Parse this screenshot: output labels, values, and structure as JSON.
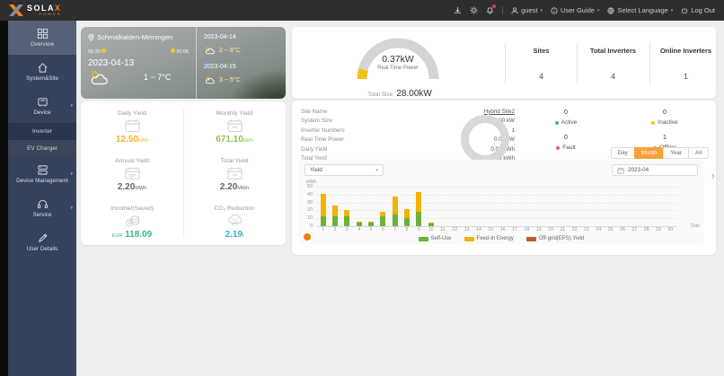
{
  "header": {
    "brand": {
      "name": "SOLA",
      "name_x": "X",
      "sub": "POWER"
    },
    "user": "guest",
    "user_guide": "User Guide",
    "select_language": "Select Language",
    "logout": "Log Out"
  },
  "sidebar": {
    "items": [
      {
        "label": "Overview"
      },
      {
        "label": "System&Site"
      },
      {
        "label": "Device"
      },
      {
        "label": "Device Management"
      },
      {
        "label": "Service"
      },
      {
        "label": "User Details"
      }
    ],
    "device_submenu": [
      {
        "label": "Inverter"
      },
      {
        "label": "EV Charger"
      }
    ]
  },
  "weather": {
    "location": "Schmalkalden-Meiningen",
    "sunrise": "06:30",
    "sunset": "20:06",
    "date": "2023-04-13",
    "temp": "1 ~ 7°C",
    "forecast": [
      {
        "date": "2023-04-14",
        "temp": "2 ~ 8°C"
      },
      {
        "date": "2023-04-15",
        "temp": "3 ~ 5°C"
      }
    ]
  },
  "yield_cards": [
    {
      "label": "Daily Yield",
      "value": "12.50",
      "unit": "kWh",
      "color": "#f0b429"
    },
    {
      "label": "Monthly Yield",
      "value": "671.10",
      "unit": "kWh",
      "color": "#8bc34a"
    },
    {
      "label": "Annual Yield",
      "value": "2.20",
      "unit": "MWh",
      "color": "#666666"
    },
    {
      "label": "Total Yield",
      "value": "2.20",
      "unit": "MWh",
      "color": "#666666"
    },
    {
      "label": "Income/(Saved)",
      "prefix": "EUR",
      "value": "118.09",
      "unit": "",
      "color": "#3cb689"
    },
    {
      "label": "CO₂ Reduction",
      "value": "2.19",
      "unit": "t",
      "color": "#3fa9c9"
    }
  ],
  "summary": {
    "gauge_value": "0.37kW",
    "gauge_label": "Real Time Power",
    "total_size_label": "Total Size",
    "total_size_value": "28.00kW",
    "stats": [
      {
        "label": "Sites",
        "value": "4"
      },
      {
        "label": "Total Inverters",
        "value": "4"
      },
      {
        "label": "Online Inverters",
        "value": "1"
      }
    ],
    "accent_color": "#f5c01e",
    "gauge_track_color": "#d4d4d4"
  },
  "site": {
    "rows": [
      {
        "label": "Site Name",
        "value": "Hybrid Site2"
      },
      {
        "label": "System Size",
        "value": "10.00 kW"
      },
      {
        "label": "Inverter Numbers",
        "value": "1"
      },
      {
        "label": "Real Time Power",
        "value": "0.00 kW"
      },
      {
        "label": "Daily Yield",
        "value": "0.00 kWh"
      },
      {
        "label": "Total Yield",
        "value": "694.20 kWh"
      }
    ],
    "statuses": [
      {
        "count": "0",
        "label": "Active",
        "color": "#3cb878"
      },
      {
        "count": "0",
        "label": "Inactive",
        "color": "#f5c518"
      },
      {
        "count": "0",
        "label": "Fault",
        "color": "#f05a7e"
      },
      {
        "count": "1",
        "label": "Offline",
        "color": "#9e9e9e"
      }
    ]
  },
  "chart_controls": {
    "ranges": [
      {
        "label": "Day"
      },
      {
        "label": "Month"
      },
      {
        "label": "Year"
      },
      {
        "label": "All"
      }
    ],
    "active_range": "Month",
    "metric": "Yield",
    "date": "2023-04"
  },
  "chart_data": {
    "type": "bar",
    "stacked": true,
    "x": [
      1,
      2,
      3,
      4,
      5,
      6,
      7,
      8,
      9,
      10,
      11,
      12,
      13,
      14,
      15,
      16,
      17,
      18,
      19,
      20,
      21,
      22,
      23,
      24,
      25,
      26,
      27,
      28,
      29,
      30
    ],
    "series": [
      {
        "name": "Self-Use",
        "color": "#6db236",
        "values": [
          13,
          12,
          12,
          5,
          5,
          13,
          15,
          10,
          18,
          4,
          0,
          0,
          0,
          0,
          0,
          0,
          0,
          0,
          0,
          0,
          0,
          0,
          0,
          0,
          0,
          0,
          0,
          0,
          0,
          0
        ]
      },
      {
        "name": "Feed-In Energy",
        "color": "#f2b200",
        "values": [
          28,
          14,
          8,
          1,
          1,
          5,
          22,
          12,
          25,
          1,
          0,
          0,
          0,
          0,
          0,
          0,
          0,
          0,
          0,
          0,
          0,
          0,
          0,
          0,
          0,
          0,
          0,
          0,
          0,
          0
        ]
      },
      {
        "name": "Off-grid(EPS) Yield",
        "color": "#c05b28",
        "values": [
          0,
          0,
          0,
          0,
          0,
          0,
          0,
          0,
          0,
          0,
          0,
          0,
          0,
          0,
          0,
          0,
          0,
          0,
          0,
          0,
          0,
          0,
          0,
          0,
          0,
          0,
          0,
          0,
          0,
          0
        ]
      }
    ],
    "title": "",
    "xlabel": "Day",
    "ylabel": "kWh",
    "ylim": [
      0,
      50
    ],
    "yticks": [
      0,
      10,
      20,
      30,
      40,
      50
    ],
    "legend_position": "bottom",
    "grid": true
  }
}
